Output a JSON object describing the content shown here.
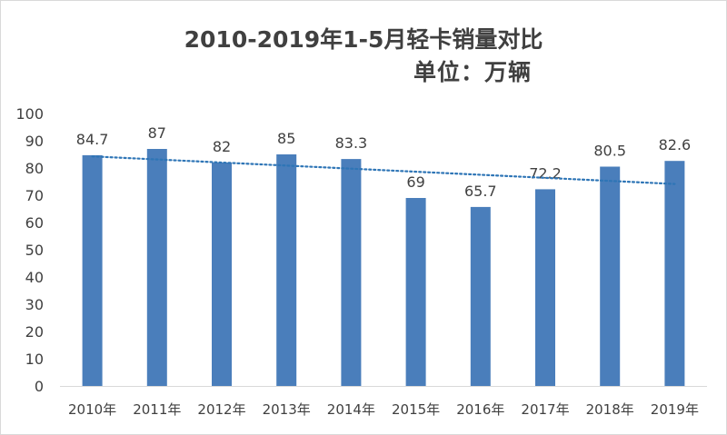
{
  "chart_data": {
    "type": "bar",
    "title": "2010-2019年1-5月轻卡销量对比",
    "subtitle": "单位：万辆",
    "categories": [
      "2010年",
      "2011年",
      "2012年",
      "2013年",
      "2014年",
      "2015年",
      "2016年",
      "2017年",
      "2018年",
      "2019年"
    ],
    "values": [
      84.7,
      87,
      82,
      85,
      83.3,
      69,
      65.7,
      72.2,
      80.5,
      82.6
    ],
    "data_labels": [
      "84.7",
      "87",
      "82",
      "85",
      "83.3",
      "69",
      "65.7",
      "72.2",
      "80.5",
      "82.6"
    ],
    "ylim": [
      0,
      100
    ],
    "yticks": [
      0,
      10,
      20,
      30,
      40,
      50,
      60,
      70,
      80,
      90,
      100
    ],
    "grid": false,
    "legend": "none",
    "trendline": {
      "type": "linear",
      "style": "dotted"
    },
    "bar_color": "#4a7ebb",
    "trend_color": "#2e75b6",
    "text_color": "#404040",
    "axis_color": "#d9d9d9"
  }
}
